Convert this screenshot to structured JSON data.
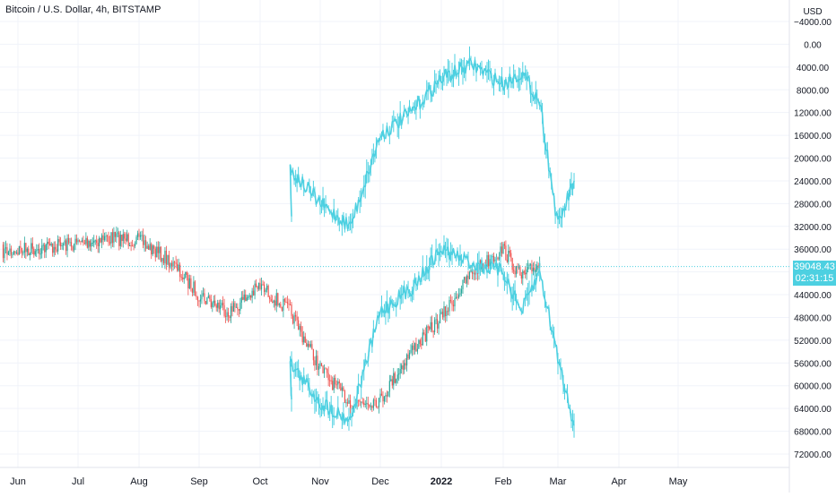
{
  "header": {
    "title": "Bitcoin / U.S. Dollar, 4h, BITSTAMP"
  },
  "axis": {
    "currency_label": "USD"
  },
  "last_price": {
    "value": "39048.43",
    "countdown": "02:31:15"
  },
  "colors": {
    "overlay": "#4dd0e1",
    "up": "#26a69a",
    "down": "#ef5350",
    "grid": "#f0f3fa",
    "axis_text": "#131722"
  },
  "chart_data": {
    "type": "line",
    "title": "Bitcoin / U.S. Dollar, 4h, BITSTAMP",
    "ylabel": "USD",
    "y_scale": "inverted",
    "ylim": [
      -4000,
      72000
    ],
    "y_ticks": [
      "−4000.00",
      "0.00",
      "4000.00",
      "8000.00",
      "12000.00",
      "16000.00",
      "20000.00",
      "24000.00",
      "28000.00",
      "32000.00",
      "36000.00",
      "40000.00",
      "44000.00",
      "48000.00",
      "52000.00",
      "56000.00",
      "60000.00",
      "64000.00",
      "68000.00",
      "72000.00"
    ],
    "x_ticks": [
      "Jun",
      "Jul",
      "Aug",
      "Sep",
      "Oct",
      "Nov",
      "Dec",
      "2022",
      "Feb",
      "Mar",
      "Apr",
      "May"
    ],
    "grid": true,
    "series": [
      {
        "values_x": [
          "Jun",
          "Jul",
          "Jul",
          "Aug",
          "Aug",
          "Sep",
          "Sep",
          "Oct",
          "Oct",
          "Nov",
          "Nov",
          "Dec",
          "Dec",
          "2022",
          "2022",
          "Feb",
          "Feb",
          "Feb"
        ],
        "values_y": [
          36500,
          35000,
          34000,
          34500,
          38000,
          44000,
          47000,
          42500,
          47000,
          57000,
          63000,
          62500,
          54000,
          48000,
          40000,
          36000,
          41000,
          38500
        ],
        "kind": "candles"
      },
      {
        "values_x": [
          "Oct",
          "Oct",
          "Nov",
          "Nov",
          "Dec",
          "Dec",
          "2022",
          "2022",
          "Feb",
          "Feb",
          "Feb",
          "Mar",
          "Mar"
        ],
        "values_y": [
          30000,
          22000,
          28000,
          32000,
          16000,
          12000,
          6000,
          3500,
          7000,
          5000,
          10000,
          32000,
          24000
        ],
        "kind": "overlay"
      },
      {
        "values_x": [
          "Oct",
          "Oct",
          "Nov",
          "Nov",
          "Dec",
          "Dec",
          "2022",
          "2022",
          "Feb",
          "Feb",
          "Feb",
          "Mar",
          "Mar"
        ],
        "values_y": [
          61500,
          56000,
          63000,
          66000,
          47000,
          43000,
          36000,
          38500,
          40000,
          47000,
          40000,
          55000,
          67000
        ],
        "kind": "overlay"
      }
    ]
  }
}
